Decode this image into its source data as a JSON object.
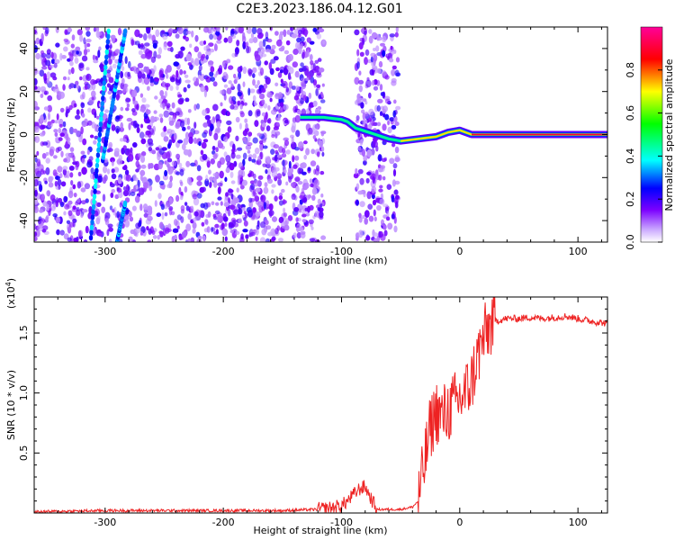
{
  "title": "C2E3.2023.186.04.12.G01",
  "chart_data": [
    {
      "type": "heatmap",
      "xlabel": "Height of straight line (km)",
      "ylabel": "Frequency (Hz)",
      "xlim": [
        -360,
        125
      ],
      "ylim": [
        -50,
        50
      ],
      "xticks": [
        -300,
        -200,
        -100,
        0,
        100
      ],
      "yticks": [
        -40,
        -20,
        0,
        20,
        40
      ],
      "colorbar": {
        "label": "Normalized spectral amplitude",
        "range": [
          0,
          1
        ],
        "ticks": [
          0.0,
          0.2,
          0.4,
          0.6,
          0.8
        ]
      },
      "features": [
        {
          "kind": "noise",
          "x_range": [
            -360,
            -115
          ]
        },
        {
          "kind": "noise",
          "x_range": [
            -88,
            -52
          ]
        },
        {
          "kind": "streak",
          "x": [
            -312,
            -297
          ],
          "y": [
            -48,
            48
          ]
        },
        {
          "kind": "streak",
          "x": [
            -302,
            -283
          ],
          "y": [
            -12,
            48
          ]
        },
        {
          "kind": "streak",
          "x": [
            -290,
            -283
          ],
          "y": [
            -50,
            -32
          ]
        },
        {
          "kind": "ridge",
          "x": [
            -135,
            -115,
            -100,
            -95,
            -88,
            -60,
            -50,
            -35,
            -20,
            -10,
            0,
            5,
            10,
            50,
            80,
            125
          ],
          "y": [
            8,
            8,
            7,
            6,
            3,
            -2,
            -3,
            -2,
            -1,
            1,
            2,
            1,
            0,
            0,
            0,
            0
          ]
        }
      ]
    },
    {
      "type": "line",
      "xlabel": "Height of straight line (km)",
      "ylabel": "SNR (10 * v/v)",
      "y_multiplier": "(x10^4)",
      "xlim": [
        -360,
        125
      ],
      "ylim": [
        0,
        1.8
      ],
      "xticks": [
        -300,
        -200,
        -100,
        0,
        100
      ],
      "yticks": [
        0.5,
        1.0,
        1.5
      ],
      "series": [
        {
          "color": "#ee2222",
          "x": [
            -360,
            -300,
            -200,
            -150,
            -120,
            -110,
            -100,
            -95,
            -90,
            -85,
            -80,
            -75,
            -70,
            -60,
            -50,
            -40,
            -35,
            -30,
            -25,
            -20,
            -15,
            -10,
            -5,
            0,
            5,
            10,
            15,
            20,
            25,
            30,
            40,
            50,
            60,
            70,
            80,
            90,
            100,
            110,
            125
          ],
          "values": [
            0.01,
            0.02,
            0.02,
            0.02,
            0.03,
            0.04,
            0.06,
            0.1,
            0.15,
            0.2,
            0.22,
            0.12,
            0.03,
            0.03,
            0.03,
            0.05,
            0.1,
            0.4,
            0.7,
            0.85,
            0.8,
            0.85,
            0.9,
            0.95,
            1.0,
            1.1,
            1.3,
            1.45,
            1.55,
            1.6,
            1.62,
            1.62,
            1.63,
            1.62,
            1.63,
            1.64,
            1.62,
            1.6,
            1.58
          ]
        }
      ]
    }
  ]
}
